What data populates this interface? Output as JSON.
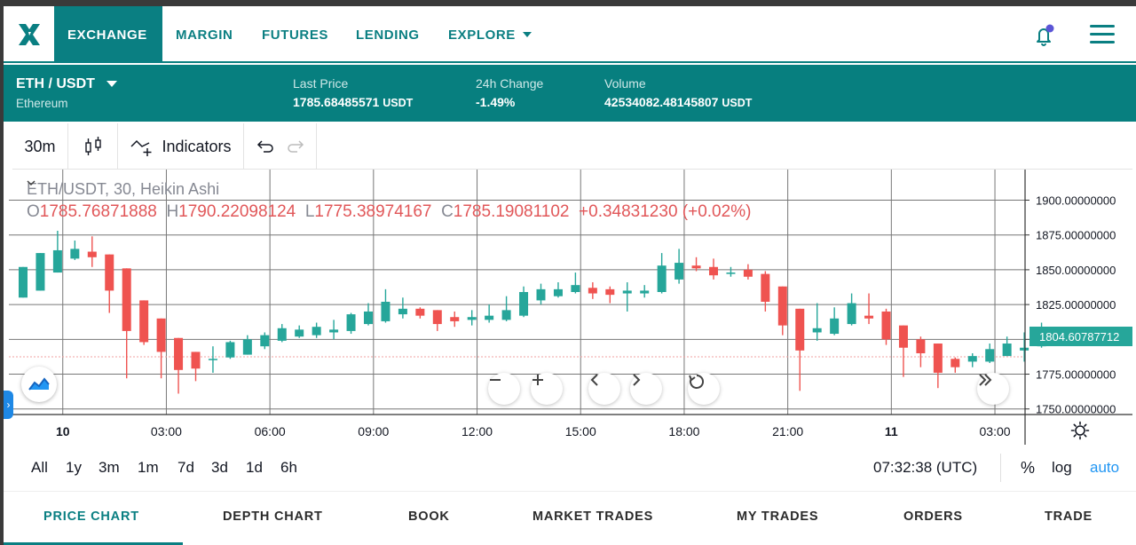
{
  "nav": {
    "logo": "X",
    "tabs": [
      {
        "label": "EXCHANGE",
        "active": true
      },
      {
        "label": "MARGIN",
        "active": false
      },
      {
        "label": "FUTURES",
        "active": false
      },
      {
        "label": "LENDING",
        "active": false
      },
      {
        "label": "EXPLORE",
        "active": false
      }
    ],
    "icons": [
      "bell-icon",
      "hamburger-menu-icon"
    ]
  },
  "ticker": {
    "pair": "ETH / USDT",
    "pair_name": "Ethereum",
    "last_price_label": "Last Price",
    "last_price": "1785.68485571",
    "last_price_unit": "USDT",
    "change_label": "24h Change",
    "change": "-1.49%",
    "volume_label": "Volume",
    "volume": "42534082.48145807",
    "volume_unit": "USDT"
  },
  "toolbar": {
    "interval": "30m",
    "indicators": "Indicators"
  },
  "chart": {
    "legend_title": "ETH/USDT, 30, Heikin Ashi",
    "o_label": "O",
    "o": "1785.76871888",
    "h_label": "H",
    "h": "1790.22098124",
    "l_label": "L",
    "l": "1775.38974167",
    "c_label": "C",
    "c": "1785.19081102",
    "change": "+0.34831230 (+0.02%)",
    "current_price_tag": "1804.60787712",
    "colors": {
      "up": "#26a69a",
      "down": "#ef5350",
      "grid": "#777777"
    }
  },
  "chart_data": {
    "type": "candlestick",
    "title": "ETH/USDT, 30, Heikin Ashi",
    "y_ticks": [
      "1900.00000000",
      "1875.00000000",
      "1850.00000000",
      "1825.00000000",
      "1800.00000000",
      "1775.00000000",
      "1750.00000000"
    ],
    "y_tick_values": [
      1900,
      1875,
      1850,
      1825,
      1800,
      1775,
      1750
    ],
    "x_ticks": [
      "10",
      "03:00",
      "06:00",
      "09:00",
      "12:00",
      "15:00",
      "18:00",
      "21:00",
      "11",
      "03:00"
    ],
    "ylim": [
      1746,
      1922
    ],
    "candles": [
      {
        "o": 1830,
        "h": 1852,
        "l": 1830,
        "c": 1852
      },
      {
        "o": 1835,
        "h": 1862,
        "l": 1835,
        "c": 1862
      },
      {
        "o": 1848,
        "h": 1878,
        "l": 1848,
        "c": 1864
      },
      {
        "o": 1858,
        "h": 1871,
        "l": 1857,
        "c": 1865
      },
      {
        "o": 1863,
        "h": 1874,
        "l": 1852,
        "c": 1859
      },
      {
        "o": 1861,
        "h": 1861,
        "l": 1819,
        "c": 1835
      },
      {
        "o": 1851,
        "h": 1851,
        "l": 1772,
        "c": 1806
      },
      {
        "o": 1828,
        "h": 1828,
        "l": 1796,
        "c": 1798
      },
      {
        "o": 1815,
        "h": 1815,
        "l": 1772,
        "c": 1791
      },
      {
        "o": 1801,
        "h": 1801,
        "l": 1761,
        "c": 1778
      },
      {
        "o": 1791,
        "h": 1791,
        "l": 1770,
        "c": 1779
      },
      {
        "o": 1786,
        "h": 1795,
        "l": 1776,
        "c": 1786
      },
      {
        "o": 1787,
        "h": 1799,
        "l": 1786,
        "c": 1798
      },
      {
        "o": 1789,
        "h": 1803,
        "l": 1789,
        "c": 1800
      },
      {
        "o": 1795,
        "h": 1805,
        "l": 1793,
        "c": 1803
      },
      {
        "o": 1799,
        "h": 1811,
        "l": 1798,
        "c": 1808
      },
      {
        "o": 1802,
        "h": 1810,
        "l": 1801,
        "c": 1807
      },
      {
        "o": 1803,
        "h": 1812,
        "l": 1801,
        "c": 1809
      },
      {
        "o": 1805,
        "h": 1814,
        "l": 1800,
        "c": 1807
      },
      {
        "o": 1806,
        "h": 1819,
        "l": 1804,
        "c": 1818
      },
      {
        "o": 1811,
        "h": 1826,
        "l": 1810,
        "c": 1820
      },
      {
        "o": 1813,
        "h": 1836,
        "l": 1812,
        "c": 1827
      },
      {
        "o": 1818,
        "h": 1830,
        "l": 1815,
        "c": 1822
      },
      {
        "o": 1822,
        "h": 1823,
        "l": 1815,
        "c": 1817
      },
      {
        "o": 1821,
        "h": 1821,
        "l": 1806,
        "c": 1811
      },
      {
        "o": 1816,
        "h": 1820,
        "l": 1809,
        "c": 1813
      },
      {
        "o": 1814,
        "h": 1821,
        "l": 1810,
        "c": 1816
      },
      {
        "o": 1814,
        "h": 1825,
        "l": 1812,
        "c": 1817
      },
      {
        "o": 1814,
        "h": 1831,
        "l": 1813,
        "c": 1821
      },
      {
        "o": 1817,
        "h": 1838,
        "l": 1816,
        "c": 1834
      },
      {
        "o": 1828,
        "h": 1840,
        "l": 1825,
        "c": 1836
      },
      {
        "o": 1831,
        "h": 1841,
        "l": 1830,
        "c": 1836
      },
      {
        "o": 1834,
        "h": 1848,
        "l": 1833,
        "c": 1839
      },
      {
        "o": 1837,
        "h": 1841,
        "l": 1829,
        "c": 1833
      },
      {
        "o": 1836,
        "h": 1838,
        "l": 1826,
        "c": 1832
      },
      {
        "o": 1833,
        "h": 1841,
        "l": 1820,
        "c": 1835
      },
      {
        "o": 1833,
        "h": 1839,
        "l": 1830,
        "c": 1835
      },
      {
        "o": 1834,
        "h": 1862,
        "l": 1833,
        "c": 1853
      },
      {
        "o": 1843,
        "h": 1865,
        "l": 1840,
        "c": 1855
      },
      {
        "o": 1853,
        "h": 1859,
        "l": 1849,
        "c": 1851
      },
      {
        "o": 1852,
        "h": 1858,
        "l": 1843,
        "c": 1846
      },
      {
        "o": 1847,
        "h": 1852,
        "l": 1845,
        "c": 1848
      },
      {
        "o": 1850,
        "h": 1854,
        "l": 1843,
        "c": 1845
      },
      {
        "o": 1847,
        "h": 1849,
        "l": 1820,
        "c": 1827
      },
      {
        "o": 1838,
        "h": 1838,
        "l": 1803,
        "c": 1810
      },
      {
        "o": 1822,
        "h": 1822,
        "l": 1763,
        "c": 1792
      },
      {
        "o": 1805,
        "h": 1826,
        "l": 1799,
        "c": 1808
      },
      {
        "o": 1804,
        "h": 1823,
        "l": 1803,
        "c": 1815
      },
      {
        "o": 1811,
        "h": 1833,
        "l": 1810,
        "c": 1826
      },
      {
        "o": 1817,
        "h": 1833,
        "l": 1811,
        "c": 1815
      },
      {
        "o": 1820,
        "h": 1822,
        "l": 1796,
        "c": 1800
      },
      {
        "o": 1810,
        "h": 1810,
        "l": 1773,
        "c": 1794
      },
      {
        "o": 1800,
        "h": 1802,
        "l": 1780,
        "c": 1790
      },
      {
        "o": 1797,
        "h": 1797,
        "l": 1765,
        "c": 1776
      },
      {
        "o": 1786,
        "h": 1787,
        "l": 1776,
        "c": 1780
      },
      {
        "o": 1784,
        "h": 1790,
        "l": 1780,
        "c": 1788
      },
      {
        "o": 1784,
        "h": 1797,
        "l": 1783,
        "c": 1793
      },
      {
        "o": 1788,
        "h": 1802,
        "l": 1788,
        "c": 1797
      },
      {
        "o": 1792,
        "h": 1805,
        "l": 1784,
        "c": 1794
      },
      {
        "o": 1795,
        "h": 1812,
        "l": 1794,
        "c": 1804
      }
    ]
  },
  "ranges": [
    "All",
    "1y",
    "3m",
    "1m",
    "7d",
    "3d",
    "1d",
    "6h"
  ],
  "clock": "07:32:38 (UTC)",
  "scale": {
    "percent": "%",
    "log": "log",
    "auto": "auto"
  },
  "bottom_tabs": [
    {
      "label": "PRICE CHART",
      "active": true
    },
    {
      "label": "DEPTH CHART",
      "active": false
    },
    {
      "label": "BOOK",
      "active": false
    },
    {
      "label": "MARKET TRADES",
      "active": false
    },
    {
      "label": "MY TRADES",
      "active": false
    },
    {
      "label": "ORDERS",
      "active": false
    },
    {
      "label": "TRADE",
      "active": false
    }
  ]
}
